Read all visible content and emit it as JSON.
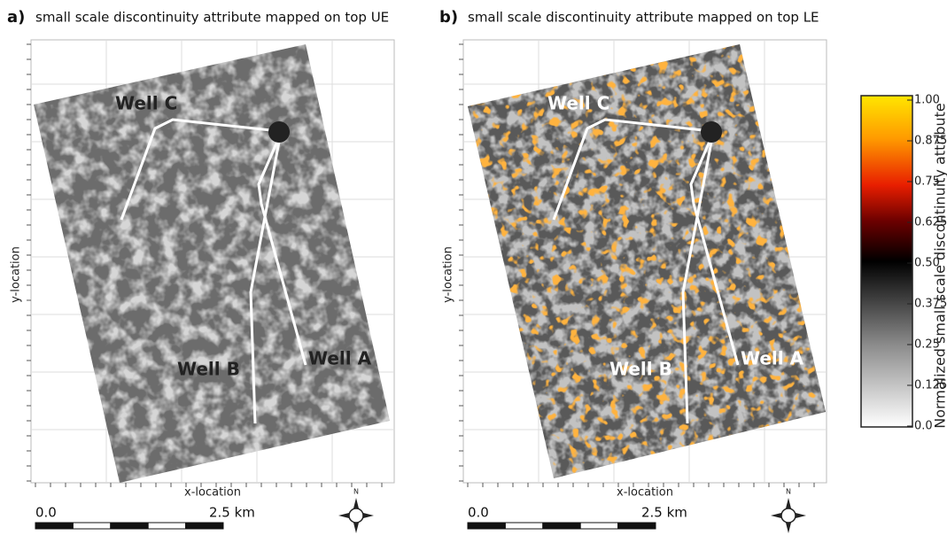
{
  "panels": [
    {
      "label": "a)",
      "title": "small scale discontinuity attribute mapped on top UE",
      "x_axis_label": "x-location",
      "y_axis_label": "y-location",
      "wells": [
        "Well C",
        "Well B",
        "Well A"
      ],
      "scale_bar": {
        "start": "0.0",
        "end": "2.5 km"
      },
      "compass": "N"
    },
    {
      "label": "b)",
      "title": "small scale discontinuity attribute mapped on top LE",
      "x_axis_label": "x-location",
      "y_axis_label": "y-location",
      "wells": [
        "Well C",
        "Well B",
        "Well A"
      ],
      "scale_bar": {
        "start": "0.0",
        "end": "2.5 km"
      },
      "compass": "N"
    }
  ],
  "colorbar": {
    "title": "Normalized small scale discontinuity  attribute",
    "ticks": [
      "1.00",
      "0.875",
      "0.75",
      "0.625",
      "0.50",
      "0.375",
      "0.25",
      "0.125",
      "0.0"
    ]
  }
}
